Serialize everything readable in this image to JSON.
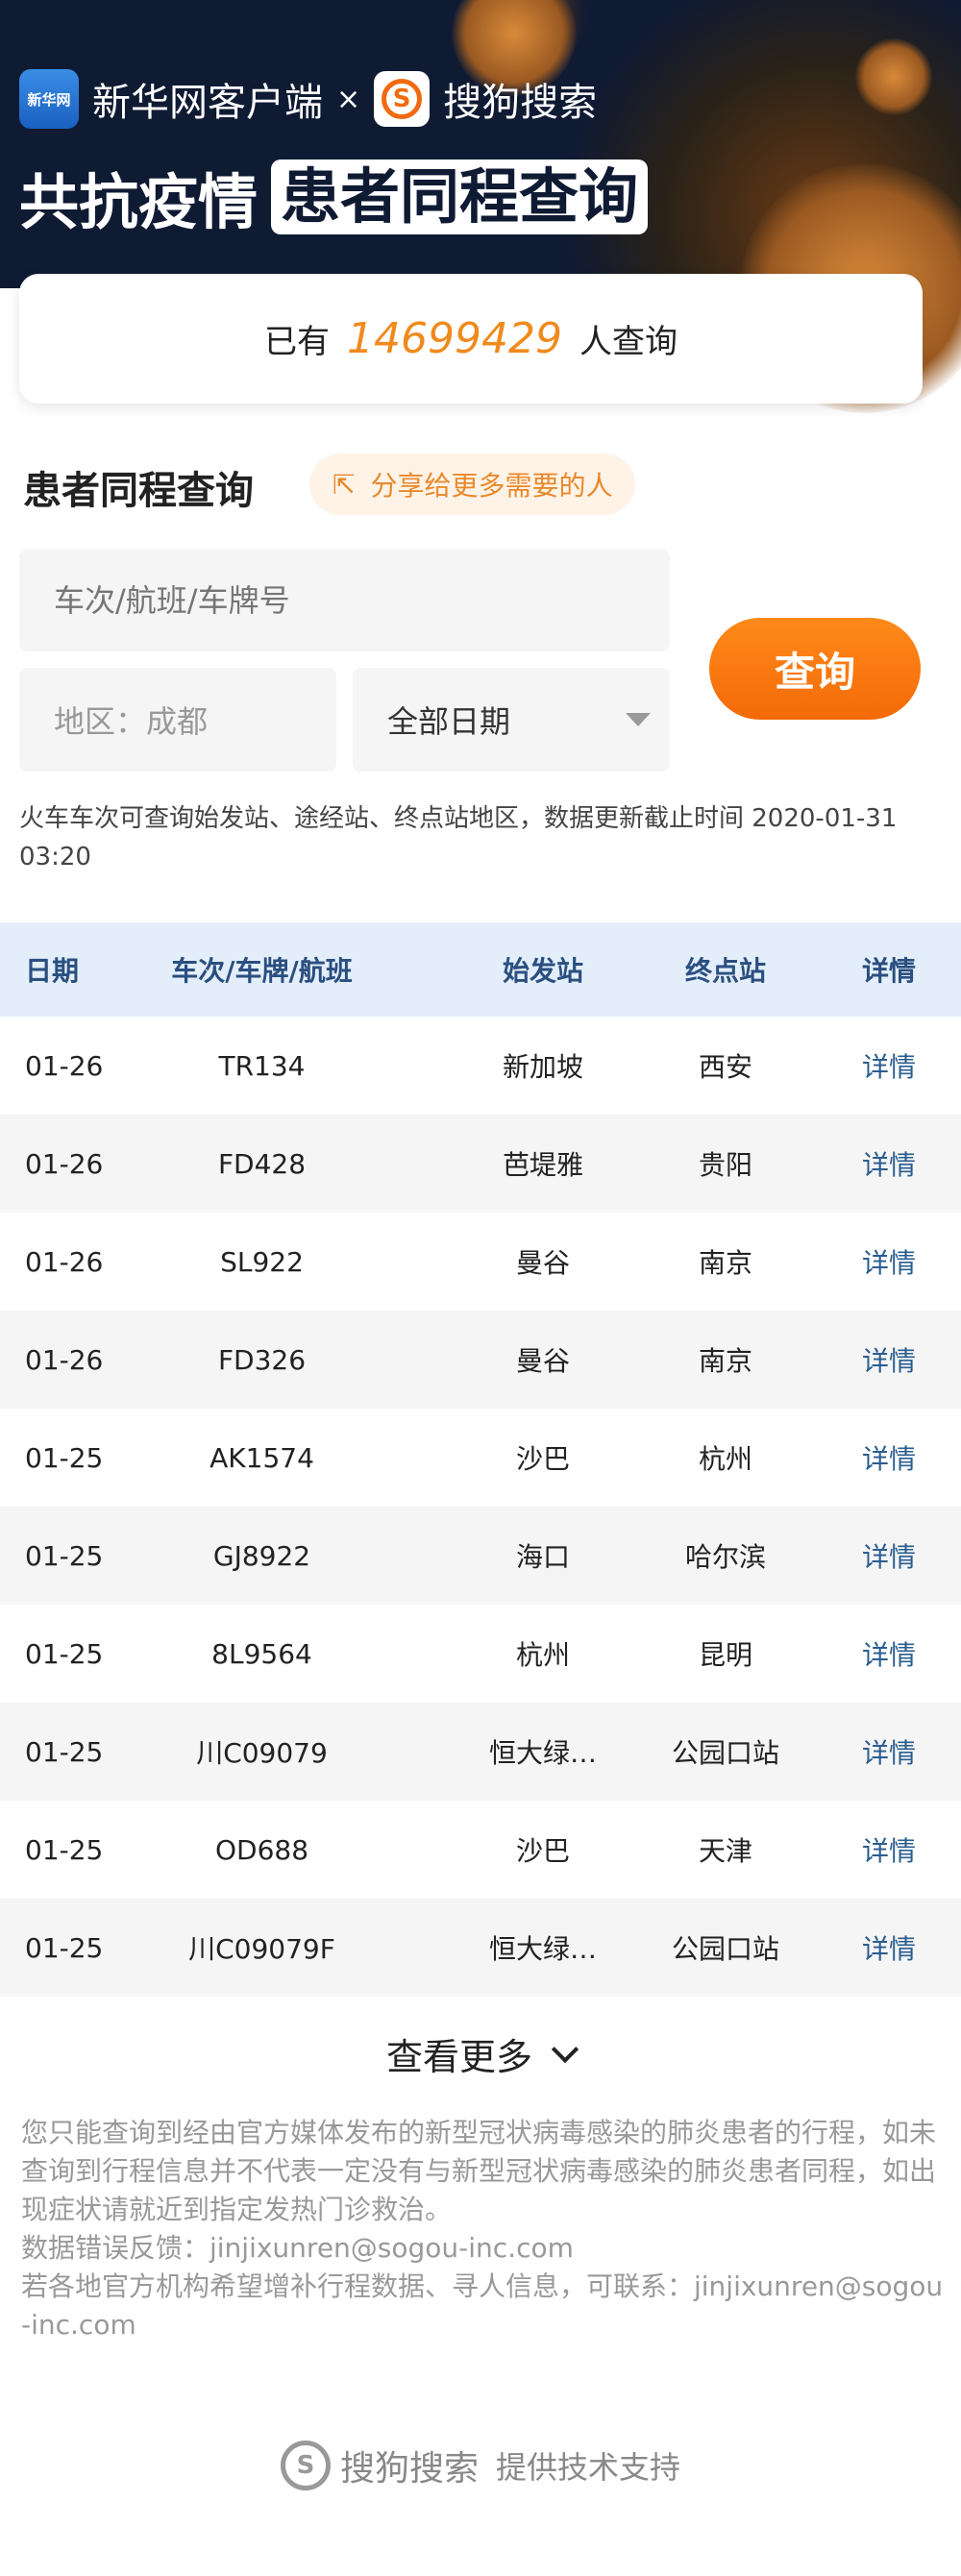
{
  "banner": {
    "xinhua_logo": "新华网",
    "xinhua": "新华网客户端",
    "times": "×",
    "sogou_logo": "S",
    "sogou": "搜狗搜索",
    "slogan": "共抗疫情",
    "slogan_boxed": "患者同程查询"
  },
  "counter": {
    "prefix": "已有",
    "count": "14699429",
    "suffix": "人查询"
  },
  "search": {
    "title": "患者同程查询",
    "share_label": "分享给更多需要的人",
    "trip_placeholder": "车次/航班/车牌号",
    "region_label": "地区：成都",
    "date_select": "全部日期",
    "query_button": "查询"
  },
  "note": "火车车次可查询始发站、途经站、终点站地区，数据更新截止时间 2020-01-31 03:20",
  "table": {
    "headers": [
      "日期",
      "车次/车牌/航班",
      "始发站",
      "终点站",
      "详情"
    ],
    "rows": [
      [
        "01-26",
        "TR134",
        "新加坡",
        "西安",
        "详情"
      ],
      [
        "01-26",
        "FD428",
        "芭堤雅",
        "贵阳",
        "详情"
      ],
      [
        "01-26",
        "SL922",
        "曼谷",
        "南京",
        "详情"
      ],
      [
        "01-26",
        "FD326",
        "曼谷",
        "南京",
        "详情"
      ],
      [
        "01-25",
        "AK1574",
        "沙巴",
        "杭州",
        "详情"
      ],
      [
        "01-25",
        "GJ8922",
        "海口",
        "哈尔滨",
        "详情"
      ],
      [
        "01-25",
        "8L9564",
        "杭州",
        "昆明",
        "详情"
      ],
      [
        "01-25",
        "川C09079",
        "恒大绿…",
        "公园口站",
        "详情"
      ],
      [
        "01-25",
        "OD688",
        "沙巴",
        "天津",
        "详情"
      ],
      [
        "01-25",
        "川C09079F",
        "恒大绿…",
        "公园口站",
        "详情"
      ]
    ]
  },
  "more_label": "查看更多",
  "disclaimer": [
    "您只能查询到经由官方媒体发布的新型冠状病毒感染的肺炎患者的行程，如未查询到行程信息并不代表一定没有与新型冠状病毒感染的肺炎患者同程，如出现症状请就近到指定发热门诊救治。",
    "数据错误反馈：jinjixunren@sogou-inc.com",
    "若各地官方机构希望增补行程数据、寻人信息，可联系：jinjixunren@sogou-inc.com"
  ],
  "footer": {
    "logo": "S",
    "brand": "搜狗搜索",
    "text": "提供技术支持"
  },
  "colors": {
    "accent": "#f46a08",
    "banner": "#0f1a33",
    "table_header": "#e3eefa",
    "link": "#2a5d8f"
  }
}
